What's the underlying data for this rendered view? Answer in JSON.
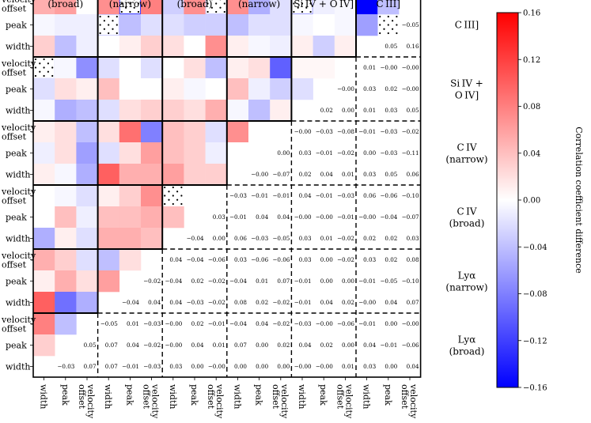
{
  "chart_data": {
    "type": "heatmap",
    "title": "",
    "colorbar": {
      "label": "Correlation coefficient difference",
      "min": -0.16,
      "max": 0.16,
      "ticks": [
        "0.16",
        "0.12",
        "0.08",
        "0.04",
        "0.00",
        "−0.04",
        "−0.08",
        "−0.12",
        "−0.16"
      ],
      "tick_values": [
        0.16,
        0.12,
        0.08,
        0.04,
        0.0,
        -0.04,
        -0.08,
        -0.12,
        -0.16
      ]
    },
    "column_groups": [
      "(broad)",
      "(narrow)",
      "(broad)",
      "(narrow)",
      "Si IV + O IV]",
      "C III]"
    ],
    "column_labels": [
      "width",
      "peak",
      "velocity offset",
      "width",
      "peak",
      "velocity offset",
      "width",
      "peak",
      "velocity offset",
      "width",
      "peak",
      "velocity offset",
      "width",
      "peak",
      "velocity offset",
      "width",
      "peak",
      "velocity offset"
    ],
    "row_groups": [
      {
        "line1": "C III]",
        "line2": ""
      },
      {
        "line1": "Si IV +",
        "line2": "O IV]"
      },
      {
        "line1": "C IV",
        "line2": "(narrow)"
      },
      {
        "line1": "C IV",
        "line2": "(broad)"
      },
      {
        "line1": "Lyα",
        "line2": "(narrow)"
      },
      {
        "line1": "Lyα",
        "line2": "(broad)"
      }
    ],
    "row_labels": [
      [
        "velocity",
        "offset"
      ],
      [
        "peak",
        ""
      ],
      [
        "width",
        ""
      ],
      [
        "velocity",
        "offset"
      ],
      [
        "peak",
        ""
      ],
      [
        "width",
        ""
      ],
      [
        "velocity",
        "offset"
      ],
      [
        "peak",
        ""
      ],
      [
        "width",
        ""
      ],
      [
        "velocity",
        "offset"
      ],
      [
        "peak",
        ""
      ],
      [
        "width",
        ""
      ],
      [
        "velocity",
        "offset"
      ],
      [
        "peak",
        ""
      ],
      [
        "width",
        ""
      ],
      [
        "velocity",
        "offset"
      ],
      [
        "peak",
        ""
      ],
      [
        "width",
        ""
      ]
    ],
    "colored_values": [
      [
        0.05,
        0.06,
        0.0,
        0.07,
        -0.12,
        0.08,
        -0.03,
        0.07,
        -0.03,
        0.07,
        -0.05,
        -0.02,
        -0.06,
        -0.01,
        -0.005,
        -0.16,
        -0.04,
        0.0
      ],
      [
        -0.005,
        -0.01,
        -0.01,
        -0.03,
        -0.04,
        -0.02,
        -0.02,
        -0.03,
        -0.03,
        -0.04,
        -0.02,
        -0.02,
        -0.005,
        0.0,
        -0.005,
        -0.06,
        null,
        null
      ],
      [
        0.03,
        -0.04,
        -0.01,
        0.0,
        0.01,
        0.03,
        0.02,
        0.0,
        0.07,
        0.01,
        -0.005,
        -0.01,
        0.01,
        -0.03,
        0.01,
        null,
        null,
        null
      ],
      [
        -0.01,
        -0.005,
        -0.07,
        -0.02,
        0.0,
        -0.02,
        0.0,
        0.02,
        -0.04,
        0.01,
        0.02,
        -0.1,
        0.005,
        0.005,
        null,
        null,
        null,
        null
      ],
      [
        -0.02,
        0.02,
        0.01,
        0.04,
        0.0,
        0.0,
        0.01,
        -0.005,
        0.0,
        0.04,
        -0.01,
        -0.03,
        -0.02,
        null,
        null,
        null,
        null,
        null
      ],
      [
        -0.005,
        -0.05,
        -0.04,
        -0.02,
        0.02,
        0.03,
        0.03,
        0.02,
        0.05,
        -0.005,
        -0.04,
        0.01,
        null,
        null,
        null,
        null,
        null,
        null
      ],
      [
        0.01,
        0.02,
        -0.04,
        0.02,
        0.09,
        -0.08,
        0.04,
        0.03,
        -0.02,
        0.07,
        0.0,
        null,
        null,
        null,
        null,
        null,
        null,
        null
      ],
      [
        -0.01,
        0.02,
        -0.06,
        -0.02,
        0.02,
        0.06,
        0.04,
        0.03,
        -0.01,
        0.0,
        null,
        null,
        null,
        null,
        null,
        null,
        null,
        null
      ],
      [
        0.01,
        -0.005,
        -0.05,
        0.1,
        0.05,
        0.05,
        0.06,
        0.03,
        0.03,
        null,
        null,
        null,
        null,
        null,
        null,
        null,
        null,
        null
      ],
      [
        0.0,
        -0.005,
        -0.02,
        0.01,
        0.03,
        0.07,
        0.0,
        0.0,
        null,
        null,
        null,
        null,
        null,
        null,
        null,
        null,
        null,
        null
      ],
      [
        0.0,
        0.04,
        -0.01,
        0.04,
        0.04,
        0.05,
        0.04,
        null,
        null,
        null,
        null,
        null,
        null,
        null,
        null,
        null,
        null,
        null
      ],
      [
        -0.05,
        0.01,
        -0.02,
        0.05,
        0.05,
        0.04,
        null,
        null,
        null,
        null,
        null,
        null,
        null,
        null,
        null,
        null,
        null,
        null
      ],
      [
        0.05,
        0.03,
        -0.02,
        -0.04,
        0.02,
        null,
        null,
        null,
        null,
        null,
        null,
        null,
        null,
        null,
        null,
        null,
        null,
        null
      ],
      [
        0.01,
        0.05,
        0.02,
        0.06,
        null,
        null,
        null,
        null,
        null,
        null,
        null,
        null,
        null,
        null,
        null,
        null,
        null,
        null
      ],
      [
        0.1,
        -0.09,
        -0.05,
        null,
        null,
        null,
        null,
        null,
        null,
        null,
        null,
        null,
        null,
        null,
        null,
        null,
        null,
        null
      ],
      [
        0.08,
        -0.04,
        null,
        null,
        null,
        null,
        null,
        null,
        null,
        null,
        null,
        null,
        null,
        null,
        null,
        null,
        null,
        null
      ],
      [
        0.03,
        null,
        null,
        null,
        null,
        null,
        null,
        null,
        null,
        null,
        null,
        null,
        null,
        null,
        null,
        null,
        null,
        null
      ],
      [
        null,
        null,
        null,
        null,
        null,
        null,
        null,
        null,
        null,
        null,
        null,
        null,
        null,
        null,
        null,
        null,
        null,
        null
      ]
    ],
    "dotted_cells": [
      [
        0,
        4
      ],
      [
        0,
        8
      ],
      [
        0,
        12
      ],
      [
        1,
        3
      ],
      [
        1,
        16
      ],
      [
        3,
        0
      ],
      [
        9,
        6
      ]
    ],
    "text_annotations": [
      {
        "row": 1,
        "col": 17,
        "text": "−0.05"
      },
      {
        "row": 2,
        "col": 16,
        "text": "0.05"
      },
      {
        "row": 2,
        "col": 17,
        "text": "0.16"
      },
      {
        "row": 3,
        "col": 15,
        "text": "0.01"
      },
      {
        "row": 3,
        "col": 16,
        "text": "−0.00"
      },
      {
        "row": 3,
        "col": 17,
        "text": "−0.00"
      },
      {
        "row": 4,
        "col": 14,
        "text": "−0.00"
      },
      {
        "row": 4,
        "col": 15,
        "text": "0.03"
      },
      {
        "row": 4,
        "col": 16,
        "text": "0.02"
      },
      {
        "row": 4,
        "col": 17,
        "text": "−0.00"
      },
      {
        "row": 5,
        "col": 13,
        "text": "0.02"
      },
      {
        "row": 5,
        "col": 14,
        "text": "0.00"
      },
      {
        "row": 5,
        "col": 15,
        "text": "0.01"
      },
      {
        "row": 5,
        "col": 16,
        "text": "0.03"
      },
      {
        "row": 5,
        "col": 17,
        "text": "0.05"
      },
      {
        "row": 6,
        "col": 12,
        "text": "−0.00"
      },
      {
        "row": 6,
        "col": 13,
        "text": "−0.03"
      },
      {
        "row": 6,
        "col": 14,
        "text": "−0.08"
      },
      {
        "row": 6,
        "col": 15,
        "text": "−0.01"
      },
      {
        "row": 6,
        "col": 16,
        "text": "−0.03"
      },
      {
        "row": 6,
        "col": 17,
        "text": "−0.02"
      },
      {
        "row": 7,
        "col": 11,
        "text": "0.00"
      },
      {
        "row": 7,
        "col": 12,
        "text": "0.03"
      },
      {
        "row": 7,
        "col": 13,
        "text": "−0.01"
      },
      {
        "row": 7,
        "col": 14,
        "text": "−0.02"
      },
      {
        "row": 7,
        "col": 15,
        "text": "0.00"
      },
      {
        "row": 7,
        "col": 16,
        "text": "−0.03"
      },
      {
        "row": 7,
        "col": 17,
        "text": "−0.11"
      },
      {
        "row": 8,
        "col": 10,
        "text": "−0.00"
      },
      {
        "row": 8,
        "col": 11,
        "text": "−0.07"
      },
      {
        "row": 8,
        "col": 12,
        "text": "0.02"
      },
      {
        "row": 8,
        "col": 13,
        "text": "0.04"
      },
      {
        "row": 8,
        "col": 14,
        "text": "0.01"
      },
      {
        "row": 8,
        "col": 15,
        "text": "0.03"
      },
      {
        "row": 8,
        "col": 16,
        "text": "0.05"
      },
      {
        "row": 8,
        "col": 17,
        "text": "0.06"
      },
      {
        "row": 9,
        "col": 9,
        "text": "−0.03"
      },
      {
        "row": 9,
        "col": 10,
        "text": "−0.01"
      },
      {
        "row": 9,
        "col": 11,
        "text": "−0.01"
      },
      {
        "row": 9,
        "col": 12,
        "text": "0.04"
      },
      {
        "row": 9,
        "col": 13,
        "text": "−0.01"
      },
      {
        "row": 9,
        "col": 14,
        "text": "−0.03"
      },
      {
        "row": 9,
        "col": 15,
        "text": "0.06"
      },
      {
        "row": 9,
        "col": 16,
        "text": "−0.06"
      },
      {
        "row": 9,
        "col": 17,
        "text": "−0.10"
      },
      {
        "row": 10,
        "col": 8,
        "text": "0.03"
      },
      {
        "row": 10,
        "col": 9,
        "text": "−0.01"
      },
      {
        "row": 10,
        "col": 10,
        "text": "0.04"
      },
      {
        "row": 10,
        "col": 11,
        "text": "0.04"
      },
      {
        "row": 10,
        "col": 12,
        "text": "−0.00"
      },
      {
        "row": 10,
        "col": 13,
        "text": "−0.00"
      },
      {
        "row": 10,
        "col": 14,
        "text": "−0.01"
      },
      {
        "row": 10,
        "col": 15,
        "text": "−0.00"
      },
      {
        "row": 10,
        "col": 16,
        "text": "−0.04"
      },
      {
        "row": 10,
        "col": 17,
        "text": "−0.07"
      },
      {
        "row": 11,
        "col": 7,
        "text": "−0.04"
      },
      {
        "row": 11,
        "col": 8,
        "text": "0.00"
      },
      {
        "row": 11,
        "col": 9,
        "text": "0.06"
      },
      {
        "row": 11,
        "col": 10,
        "text": "−0.03"
      },
      {
        "row": 11,
        "col": 11,
        "text": "−0.05"
      },
      {
        "row": 11,
        "col": 12,
        "text": "0.03"
      },
      {
        "row": 11,
        "col": 13,
        "text": "0.01"
      },
      {
        "row": 11,
        "col": 14,
        "text": "−0.02"
      },
      {
        "row": 11,
        "col": 15,
        "text": "0.02"
      },
      {
        "row": 11,
        "col": 16,
        "text": "0.02"
      },
      {
        "row": 11,
        "col": 17,
        "text": "0.03"
      },
      {
        "row": 12,
        "col": 6,
        "text": "0.04"
      },
      {
        "row": 12,
        "col": 7,
        "text": "−0.04"
      },
      {
        "row": 12,
        "col": 8,
        "text": "−0.06"
      },
      {
        "row": 12,
        "col": 9,
        "text": "0.03"
      },
      {
        "row": 12,
        "col": 10,
        "text": "−0.06"
      },
      {
        "row": 12,
        "col": 11,
        "text": "−0.06"
      },
      {
        "row": 12,
        "col": 12,
        "text": "0.03"
      },
      {
        "row": 12,
        "col": 13,
        "text": "0.00"
      },
      {
        "row": 12,
        "col": 14,
        "text": "−0.02"
      },
      {
        "row": 12,
        "col": 15,
        "text": "0.03"
      },
      {
        "row": 12,
        "col": 16,
        "text": "0.02"
      },
      {
        "row": 12,
        "col": 17,
        "text": "0.08"
      },
      {
        "row": 13,
        "col": 5,
        "text": "−0.02"
      },
      {
        "row": 13,
        "col": 6,
        "text": "−0.04"
      },
      {
        "row": 13,
        "col": 7,
        "text": "0.02"
      },
      {
        "row": 13,
        "col": 8,
        "text": "−0.02"
      },
      {
        "row": 13,
        "col": 9,
        "text": "−0.04"
      },
      {
        "row": 13,
        "col": 10,
        "text": "0.01"
      },
      {
        "row": 13,
        "col": 11,
        "text": "0.07"
      },
      {
        "row": 13,
        "col": 12,
        "text": "−0.01"
      },
      {
        "row": 13,
        "col": 13,
        "text": "0.00"
      },
      {
        "row": 13,
        "col": 14,
        "text": "0.00"
      },
      {
        "row": 13,
        "col": 15,
        "text": "−0.01"
      },
      {
        "row": 13,
        "col": 16,
        "text": "−0.05"
      },
      {
        "row": 13,
        "col": 17,
        "text": "−0.10"
      },
      {
        "row": 14,
        "col": 4,
        "text": "−0.04"
      },
      {
        "row": 14,
        "col": 5,
        "text": "0.04"
      },
      {
        "row": 14,
        "col": 6,
        "text": "0.04"
      },
      {
        "row": 14,
        "col": 7,
        "text": "−0.03"
      },
      {
        "row": 14,
        "col": 8,
        "text": "−0.02"
      },
      {
        "row": 14,
        "col": 9,
        "text": "0.08"
      },
      {
        "row": 14,
        "col": 10,
        "text": "0.02"
      },
      {
        "row": 14,
        "col": 11,
        "text": "−0.02"
      },
      {
        "row": 14,
        "col": 12,
        "text": "−0.01"
      },
      {
        "row": 14,
        "col": 13,
        "text": "0.04"
      },
      {
        "row": 14,
        "col": 14,
        "text": "0.02"
      },
      {
        "row": 14,
        "col": 15,
        "text": "−0.00"
      },
      {
        "row": 14,
        "col": 16,
        "text": "0.04"
      },
      {
        "row": 14,
        "col": 17,
        "text": "0.07"
      },
      {
        "row": 15,
        "col": 3,
        "text": "−0.05"
      },
      {
        "row": 15,
        "col": 4,
        "text": "0.01"
      },
      {
        "row": 15,
        "col": 5,
        "text": "−0.03"
      },
      {
        "row": 15,
        "col": 6,
        "text": "−0.00"
      },
      {
        "row": 15,
        "col": 7,
        "text": "0.02"
      },
      {
        "row": 15,
        "col": 8,
        "text": "−0.01"
      },
      {
        "row": 15,
        "col": 9,
        "text": "−0.04"
      },
      {
        "row": 15,
        "col": 10,
        "text": "0.04"
      },
      {
        "row": 15,
        "col": 11,
        "text": "−0.02"
      },
      {
        "row": 15,
        "col": 12,
        "text": "−0.03"
      },
      {
        "row": 15,
        "col": 13,
        "text": "−0.00"
      },
      {
        "row": 15,
        "col": 14,
        "text": "−0.06"
      },
      {
        "row": 15,
        "col": 15,
        "text": "−0.01"
      },
      {
        "row": 15,
        "col": 16,
        "text": "0.00"
      },
      {
        "row": 15,
        "col": 17,
        "text": "−0.00"
      },
      {
        "row": 16,
        "col": 2,
        "text": "0.05"
      },
      {
        "row": 16,
        "col": 3,
        "text": "0.07"
      },
      {
        "row": 16,
        "col": 4,
        "text": "0.04"
      },
      {
        "row": 16,
        "col": 5,
        "text": "−0.02"
      },
      {
        "row": 16,
        "col": 6,
        "text": "−0.00"
      },
      {
        "row": 16,
        "col": 7,
        "text": "0.04"
      },
      {
        "row": 16,
        "col": 8,
        "text": "0.01"
      },
      {
        "row": 16,
        "col": 9,
        "text": "0.07"
      },
      {
        "row": 16,
        "col": 10,
        "text": "0.00"
      },
      {
        "row": 16,
        "col": 11,
        "text": "0.02"
      },
      {
        "row": 16,
        "col": 12,
        "text": "0.04"
      },
      {
        "row": 16,
        "col": 13,
        "text": "0.02"
      },
      {
        "row": 16,
        "col": 14,
        "text": "0.00"
      },
      {
        "row": 16,
        "col": 15,
        "text": "0.04"
      },
      {
        "row": 16,
        "col": 16,
        "text": "−0.01"
      },
      {
        "row": 16,
        "col": 17,
        "text": "−0.06"
      },
      {
        "row": 17,
        "col": 1,
        "text": "−0.03"
      },
      {
        "row": 17,
        "col": 2,
        "text": "0.07"
      },
      {
        "row": 17,
        "col": 3,
        "text": "0.07"
      },
      {
        "row": 17,
        "col": 4,
        "text": "−0.01"
      },
      {
        "row": 17,
        "col": 5,
        "text": "−0.03"
      },
      {
        "row": 17,
        "col": 6,
        "text": "0.03"
      },
      {
        "row": 17,
        "col": 7,
        "text": "0.00"
      },
      {
        "row": 17,
        "col": 8,
        "text": "−0.00"
      },
      {
        "row": 17,
        "col": 9,
        "text": "0.00"
      },
      {
        "row": 17,
        "col": 10,
        "text": "0.00"
      },
      {
        "row": 17,
        "col": 11,
        "text": "0.00"
      },
      {
        "row": 17,
        "col": 12,
        "text": "−0.00"
      },
      {
        "row": 17,
        "col": 13,
        "text": "−0.00"
      },
      {
        "row": 17,
        "col": 14,
        "text": "0.01"
      },
      {
        "row": 17,
        "col": 15,
        "text": "0.03"
      },
      {
        "row": 17,
        "col": 16,
        "text": "0.00"
      },
      {
        "row": 17,
        "col": 17,
        "text": "0.04"
      }
    ]
  }
}
